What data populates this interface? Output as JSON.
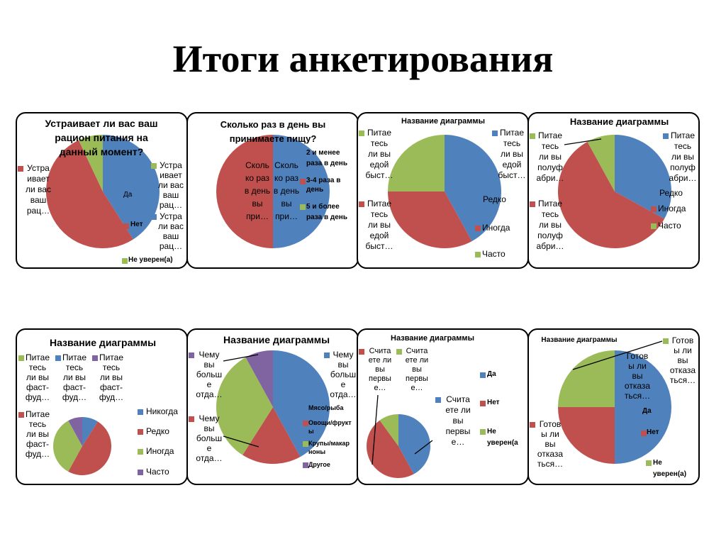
{
  "slide": {
    "title": "Итоги анкетирования"
  },
  "chart_data": [
    {
      "type": "pie",
      "title": "Устраивает ли вас ваш\nрацион питания на\nданный момент?",
      "categories": [
        "Да",
        "Нет",
        "Не уверен(а)"
      ],
      "values": [
        41,
        52,
        7
      ],
      "colors": [
        "#4f81bd",
        "#c0504d",
        "#9bbb59"
      ],
      "labels": [
        "Устра\nивает\nли вас\nваш\nрац…",
        "Устра\nивает\nли вас\nваш\nрац…",
        "Устра\nли вас\nваш\nрац…",
        "Да",
        "Нет",
        "Не уверен(а)"
      ]
    },
    {
      "type": "pie",
      "title": "Сколько раз в день вы\nпринимаете пищу?",
      "categories": [
        "2 и менее раза в день",
        "3-4 раза в день",
        "5 и более раза в день"
      ],
      "values": [
        50,
        50,
        0
      ],
      "colors": [
        "#4f81bd",
        "#c0504d",
        "#9bbb59"
      ],
      "labels": [
        "Сколь\nко раз\nв день\nвы\nпри…",
        "Сколь\nко раз\nв день\nвы\nпри…",
        "2 и менее\nраза в день",
        "3-4 раза в\nдень",
        "5 и более\nраза в день"
      ]
    },
    {
      "type": "pie",
      "title": "Название диаграммы",
      "categories": [
        "Редко",
        "Иногда",
        "Часто"
      ],
      "values": [
        42,
        33,
        25
      ],
      "colors": [
        "#4f81bd",
        "#c0504d",
        "#9bbb59"
      ],
      "labels": [
        "Питае\nтесь\nли вы\nедой\nбыст…",
        "Питае\nтесь\nли вы\nедой\nбыст…",
        "Питае\nтесь\nли вы\nедой\nбыст…",
        "Редко",
        "Иногда",
        "Часто"
      ]
    },
    {
      "type": "pie",
      "title": "Название диаграммы",
      "categories": [
        "Редко",
        "Иногда",
        "Часто"
      ],
      "values": [
        33,
        59,
        8
      ],
      "colors": [
        "#4f81bd",
        "#c0504d",
        "#9bbb59"
      ],
      "labels": [
        "Питае\nтесь\nли вы\nполуф\nабри…",
        "Питае\nтесь\nли вы\nполуф\nабри…",
        "Редко",
        "Иногда",
        "Часто",
        "Питае\nтесь\nли вы\nполуф\nабри…"
      ]
    },
    {
      "type": "pie",
      "title": "Название диаграммы",
      "categories": [
        "Никогда",
        "Редко",
        "Иногда",
        "Часто"
      ],
      "values": [
        9,
        49,
        34,
        8
      ],
      "colors": [
        "#4f81bd",
        "#c0504d",
        "#9bbb59",
        "#8064a2"
      ],
      "labels": [
        "Питае\nтесь\nли вы\nфаст-\nфуд…",
        "Питае\nтесь\nли вы\nфаст-\nфуд…",
        "Питае\nтесь\nли вы\nфаст-\nфуд…",
        "Питае\nтесь\nли вы\nфаст-\nфуд…",
        "Никогда",
        "Редко",
        "Иногда",
        "Часто"
      ]
    },
    {
      "type": "pie",
      "title": "Название диаграммы",
      "categories": [
        "Мясо/рыба",
        "Овощи/фрукты",
        "Крупы/макарноны",
        "Другое"
      ],
      "values": [
        42,
        17,
        33,
        8
      ],
      "colors": [
        "#4f81bd",
        "#c0504d",
        "#9bbb59",
        "#8064a2"
      ],
      "labels": [
        "Чему\nвы\nбольш\nе\nотда…",
        "Чему\nвы\nбольш\nе\nотда…",
        "Чему\nвы\nбольш\nе\nотда…",
        "Мясо/рыба",
        "Овощи/фрукт\nы",
        "Крупы/макар\nноны",
        "Другое"
      ]
    },
    {
      "type": "pie",
      "title": "Название диаграммы",
      "categories": [
        "Да",
        "Нет",
        "Не уверен(а)"
      ],
      "values": [
        42,
        48,
        10
      ],
      "colors": [
        "#4f81bd",
        "#c0504d",
        "#9bbb59"
      ],
      "labels": [
        "Счита\nете ли\nвы\nпервы\nе…",
        "Счита\nете ли\nвы\nпервы\nе…",
        "Счита\nете ли\nвы\nпервы\nе…",
        "Да",
        "Нет",
        "Не\nуверен(а"
      ]
    },
    {
      "type": "pie",
      "title": "Название диаграммы",
      "categories": [
        "Да",
        "Нет",
        "Не уверен(а)"
      ],
      "values": [
        50,
        25,
        25
      ],
      "colors": [
        "#4f81bd",
        "#c0504d",
        "#9bbb59"
      ],
      "labels": [
        "Готов\nы ли\nвы\nотказа\nться…",
        "Готов\nы ли\nвы\nотказа\nться…",
        "Готов\nы ли\nвы\nотказа\nться…",
        "Да",
        "Нет",
        "Не\nуверен(а)"
      ]
    }
  ]
}
